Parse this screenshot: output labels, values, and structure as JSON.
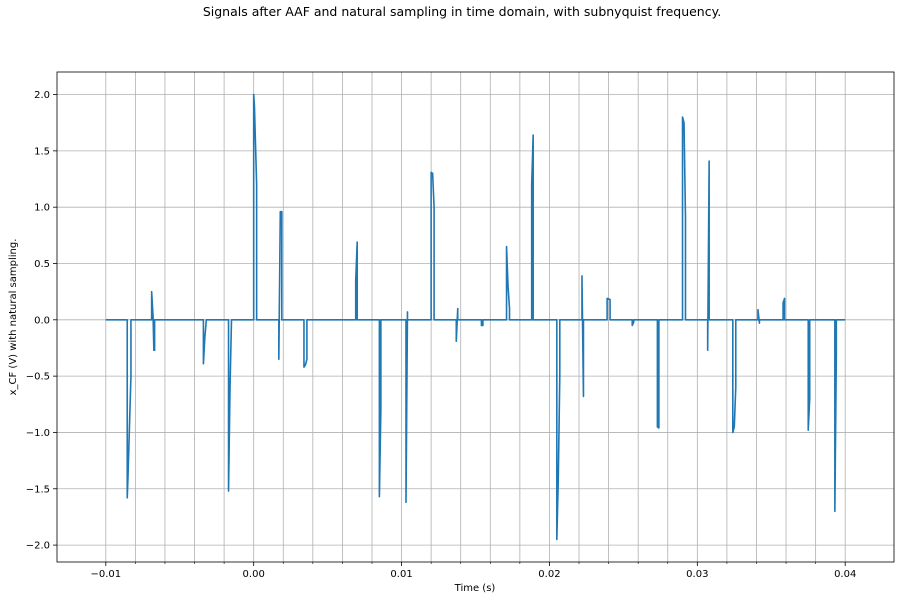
{
  "chart_data": {
    "type": "line",
    "title": "Signals after AAF and natural sampling in time domain, with subnyquist frequency.",
    "xlabel": "Time (s)",
    "ylabel": "x_CF (V) with natural sampling.",
    "xlim": [
      -0.0133,
      0.0433
    ],
    "ylim": [
      -2.15,
      2.2
    ],
    "grid": true,
    "legend": "none",
    "line_color": "#1f77b4",
    "x_ticks": [
      -0.01,
      0.0,
      0.01,
      0.02,
      0.03,
      0.04
    ],
    "x_tick_labels": [
      "−0.01",
      "0.00",
      "0.01",
      "0.02",
      "0.03",
      "0.04"
    ],
    "y_ticks": [
      -2.0,
      -1.5,
      -1.0,
      -0.5,
      0.0,
      0.5,
      1.0,
      1.5,
      2.0
    ],
    "y_tick_labels": [
      "−2.0",
      "−1.5",
      "−1.0",
      "−0.5",
      "0.0",
      "0.5",
      "1.0",
      "1.5",
      "2.0"
    ],
    "x_minor_ticks": [
      -0.008,
      -0.006,
      -0.004,
      -0.002,
      0.002,
      0.004,
      0.006,
      0.008,
      0.012,
      0.014,
      0.016,
      0.018,
      0.022,
      0.024,
      0.026,
      0.028,
      0.032,
      0.034,
      0.036,
      0.038
    ],
    "series": [
      {
        "x": [
          -0.01,
          -0.00855,
          -0.00855,
          -0.0085,
          -0.0083,
          -0.0083,
          -0.0069,
          -0.0069,
          -0.0068,
          -0.00675,
          -0.0067,
          -0.0067,
          -0.0034,
          -0.0034,
          -0.0033,
          -0.0032,
          -0.0032,
          -0.0017,
          -0.0017,
          -0.0016,
          -0.0015,
          -0.0015,
          0.0,
          0.0,
          5e-05,
          0.0002,
          0.0002,
          0.0017,
          0.0017,
          0.0018,
          0.0019,
          0.0019,
          0.0034,
          0.0034,
          0.0035,
          0.0036,
          0.0036,
          0.0069,
          0.0069,
          0.007,
          0.007,
          0.0085,
          0.0085,
          0.0086,
          0.0086,
          0.0103,
          0.0103,
          0.0104,
          0.0104,
          0.012,
          0.012,
          0.0121,
          0.0122,
          0.0122,
          0.0137,
          0.0137,
          0.0138,
          0.0138,
          0.0154,
          0.0154,
          0.0155,
          0.0155,
          0.0171,
          0.0171,
          0.0172,
          0.0173,
          0.0173,
          0.0188,
          0.0188,
          0.0189,
          0.0189,
          0.0205,
          0.0205,
          0.0206,
          0.0207,
          0.0207,
          0.0222,
          0.0222,
          0.0223,
          0.0223,
          0.0239,
          0.0239,
          0.0241,
          0.0241,
          0.0256,
          0.0256,
          0.0257,
          0.0257,
          0.0273,
          0.0273,
          0.0274,
          0.0274,
          0.029,
          0.029,
          0.0291,
          0.0292,
          0.0292,
          0.0307,
          0.0307,
          0.0308,
          0.0308,
          0.0324,
          0.0324,
          0.0325,
          0.0326,
          0.0326,
          0.0341,
          0.0341,
          0.0342,
          0.0342,
          0.0358,
          0.0358,
          0.0359,
          0.0359,
          0.0375,
          0.0375,
          0.0376,
          0.0376,
          0.0393,
          0.0393,
          0.0394,
          0.0394,
          0.04
        ],
        "y": [
          0.0,
          0.0,
          -1.58,
          -1.4,
          -0.5,
          0.0,
          0.0,
          0.25,
          0.02,
          -0.27,
          -0.27,
          0.0,
          0.0,
          -0.39,
          -0.15,
          0.0,
          0.0,
          0.0,
          -1.52,
          -0.6,
          0.0,
          0.0,
          0.0,
          2.0,
          1.9,
          1.2,
          0.0,
          0.0,
          -0.35,
          0.96,
          0.96,
          0.0,
          0.0,
          -0.42,
          -0.4,
          -0.35,
          0.0,
          0.0,
          0.35,
          0.69,
          0.0,
          0.0,
          -1.57,
          -0.8,
          0.0,
          0.0,
          -1.62,
          0.07,
          0.0,
          0.0,
          1.31,
          1.3,
          1.0,
          0.0,
          0.0,
          -0.19,
          0.1,
          0.0,
          0.0,
          -0.05,
          -0.05,
          0.0,
          0.0,
          0.65,
          0.3,
          0.1,
          0.0,
          0.0,
          1.2,
          1.64,
          0.0,
          0.0,
          -1.95,
          -1.4,
          -0.5,
          0.0,
          0.0,
          0.39,
          -0.68,
          0.0,
          0.0,
          0.19,
          0.18,
          0.0,
          0.0,
          -0.05,
          -0.02,
          0.0,
          0.0,
          -0.95,
          -0.96,
          0.0,
          0.0,
          1.8,
          1.75,
          0.9,
          0.0,
          0.0,
          -0.27,
          1.41,
          0.0,
          0.0,
          -1.0,
          -0.95,
          -0.6,
          0.0,
          0.0,
          0.09,
          -0.03,
          0.0,
          0.0,
          0.15,
          0.19,
          0.0,
          0.0,
          -0.98,
          -0.7,
          0.0,
          0.0,
          -1.7,
          -0.3,
          0.0,
          0.0
        ]
      }
    ]
  }
}
